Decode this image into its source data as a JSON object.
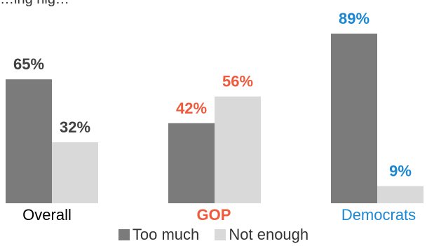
{
  "header": {
    "partial_title": "…ing hig…"
  },
  "chart_data": {
    "type": "bar",
    "categories": [
      "Overall",
      "GOP",
      "Democrats"
    ],
    "category_colors": [
      "#000000",
      "#f05a3c",
      "#1b87d2"
    ],
    "series": [
      {
        "name": "Too much",
        "color": "#7b7b7b",
        "values": [
          65,
          42,
          89
        ]
      },
      {
        "name": "Not enough",
        "color": "#d9d9d9",
        "values": [
          32,
          56,
          9
        ]
      }
    ],
    "value_suffix": "%",
    "ylim": [
      0,
      100
    ],
    "grid": false,
    "legend": "bottom"
  }
}
